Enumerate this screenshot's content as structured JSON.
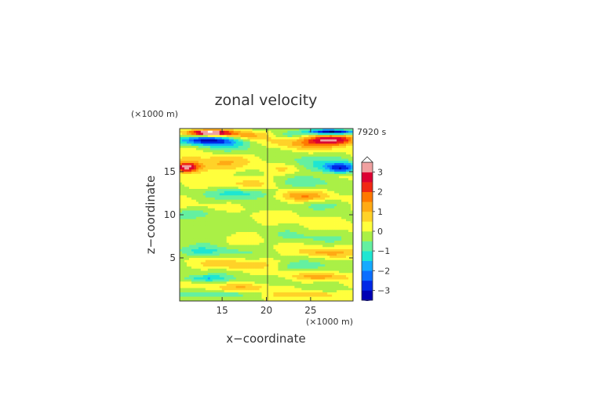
{
  "chart_data": {
    "type": "heatmap",
    "title": "zonal velocity",
    "xlabel": "x−coordinate",
    "ylabel": "z−coordinate",
    "x_unit": "(×1000 m)",
    "y_unit": "(×1000 m)",
    "time_label": "7920 s",
    "xlim": [
      10.2,
      29.8
    ],
    "ylim": [
      0,
      20
    ],
    "x_ticks": [
      15,
      20,
      25
    ],
    "y_ticks": [
      5,
      10,
      15
    ],
    "colorbar": {
      "levels": [
        -3.5,
        -3,
        -2.5,
        -2,
        -1.5,
        -1,
        -0.5,
        0,
        0.5,
        1,
        1.5,
        2,
        2.5,
        3,
        3.5
      ],
      "tick_values": [
        -3,
        -2,
        -1,
        0,
        1,
        2,
        3
      ],
      "tick_labels": [
        "−3",
        "−2",
        "−1",
        "0",
        "1",
        "2",
        "3"
      ],
      "colors": [
        "#000060",
        "#0000b4",
        "#0028e6",
        "#0a6eff",
        "#14aaff",
        "#1ee6d2",
        "#64f0a0",
        "#aaf046",
        "#ffff3c",
        "#ffd228",
        "#ffaa14",
        "#ff7800",
        "#f02814",
        "#dc0032",
        "#f0a0a0",
        "#ffffff"
      ],
      "extend": "both"
    },
    "features": [
      {
        "x": 13.5,
        "z": 19.5,
        "sx": 2.5,
        "sz": 0.3,
        "v": 3.8
      },
      {
        "x": 13.5,
        "z": 18.6,
        "sx": 3.0,
        "sz": 0.5,
        "v": -3.0
      },
      {
        "x": 27.5,
        "z": 19.6,
        "sx": 2.5,
        "sz": 0.3,
        "v": -3.8
      },
      {
        "x": 27.5,
        "z": 18.7,
        "sx": 3.0,
        "sz": 0.6,
        "v": 3.0
      },
      {
        "x": 17.5,
        "z": 19.2,
        "sx": 2.5,
        "sz": 0.5,
        "v": 1.2
      },
      {
        "x": 22.5,
        "z": 19.2,
        "sx": 2.0,
        "sz": 0.5,
        "v": -0.9
      },
      {
        "x": 24.0,
        "z": 18.2,
        "sx": 3.5,
        "sz": 0.8,
        "v": 0.9
      },
      {
        "x": 16.0,
        "z": 18.0,
        "sx": 3.5,
        "sz": 0.8,
        "v": -0.7
      },
      {
        "x": 11.0,
        "z": 15.5,
        "sx": 1.4,
        "sz": 0.6,
        "v": 3.2
      },
      {
        "x": 14.0,
        "z": 15.8,
        "sx": 4.0,
        "sz": 0.9,
        "v": 1.0
      },
      {
        "x": 28.5,
        "z": 15.4,
        "sx": 1.8,
        "sz": 0.6,
        "v": -2.8
      },
      {
        "x": 25.0,
        "z": 15.8,
        "sx": 4.0,
        "sz": 1.0,
        "v": -0.9
      },
      {
        "x": 22.0,
        "z": 15.3,
        "sx": 2.0,
        "sz": 0.6,
        "v": 0.6
      },
      {
        "x": 18.0,
        "z": 13.8,
        "sx": 3.0,
        "sz": 0.8,
        "v": 0.6
      },
      {
        "x": 25.0,
        "z": 13.8,
        "sx": 3.5,
        "sz": 0.7,
        "v": -0.6
      },
      {
        "x": 17.5,
        "z": 12.5,
        "sx": 3.5,
        "sz": 0.6,
        "v": -1.3
      },
      {
        "x": 24.0,
        "z": 12.2,
        "sx": 3.0,
        "sz": 0.6,
        "v": 1.2
      },
      {
        "x": 27.0,
        "z": 11.2,
        "sx": 3.0,
        "sz": 0.5,
        "v": -0.6
      },
      {
        "x": 13.0,
        "z": 10.2,
        "sx": 4.0,
        "sz": 0.6,
        "v": -0.6
      },
      {
        "x": 12.5,
        "z": 7.8,
        "sx": 3.0,
        "sz": 0.8,
        "v": -0.7
      },
      {
        "x": 24.0,
        "z": 7.2,
        "sx": 4.0,
        "sz": 0.8,
        "v": -0.5
      },
      {
        "x": 13.0,
        "z": 5.7,
        "sx": 3.5,
        "sz": 0.6,
        "v": -1.1
      },
      {
        "x": 26.5,
        "z": 5.6,
        "sx": 3.0,
        "sz": 0.5,
        "v": 1.1
      },
      {
        "x": 16.5,
        "z": 4.2,
        "sx": 4.0,
        "sz": 0.5,
        "v": 0.9
      },
      {
        "x": 24.0,
        "z": 4.0,
        "sx": 3.5,
        "sz": 0.5,
        "v": -0.8
      },
      {
        "x": 13.0,
        "z": 2.6,
        "sx": 3.0,
        "sz": 0.4,
        "v": -1.4
      },
      {
        "x": 26.0,
        "z": 2.8,
        "sx": 3.5,
        "sz": 0.4,
        "v": 1.0
      },
      {
        "x": 18.0,
        "z": 1.6,
        "sx": 3.0,
        "sz": 0.4,
        "v": 0.8
      },
      {
        "x": 15.0,
        "z": 0.8,
        "sx": 4.0,
        "sz": 0.35,
        "v": -0.9
      },
      {
        "x": 25.0,
        "z": 0.8,
        "sx": 4.0,
        "sz": 0.35,
        "v": 0.9
      }
    ]
  }
}
